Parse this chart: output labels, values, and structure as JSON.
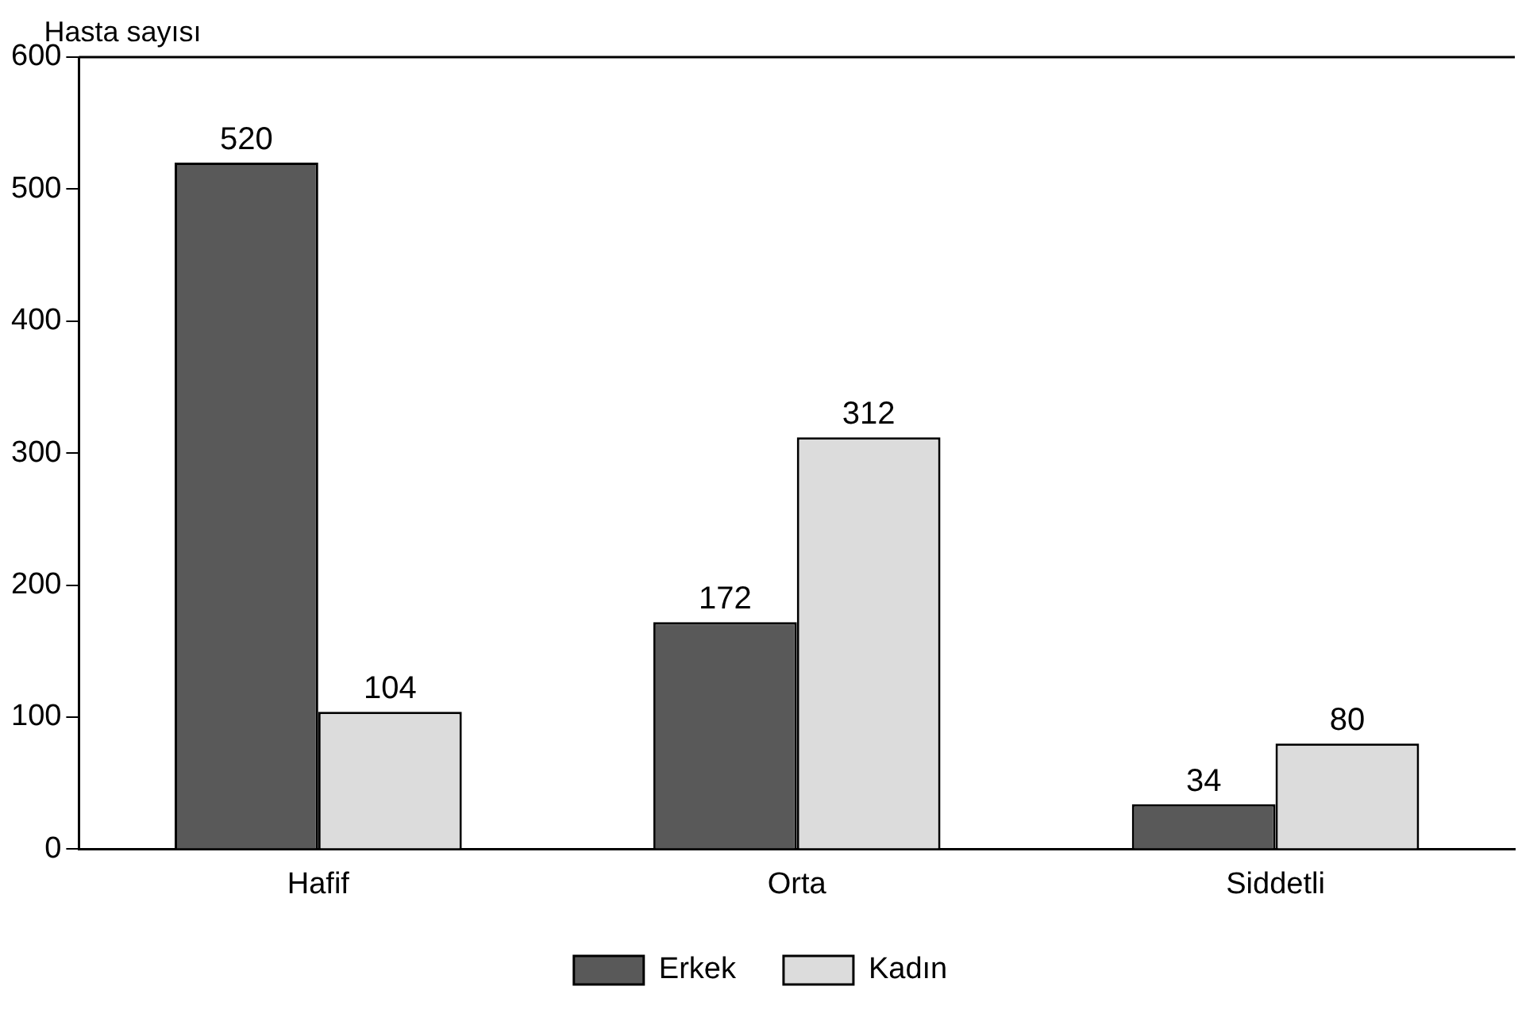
{
  "chart_data": {
    "type": "bar",
    "ylabel": "Hasta sayısı",
    "categories": [
      "Hafif",
      "Orta",
      "Siddetli"
    ],
    "series": [
      {
        "name": "Erkek",
        "color": "#595959",
        "values": [
          520,
          172,
          34
        ]
      },
      {
        "name": "Kadın",
        "color": "#dcdcdc",
        "values": [
          104,
          312,
          80
        ]
      }
    ],
    "ylim": [
      0,
      600
    ],
    "yticks": [
      0,
      100,
      200,
      300,
      400,
      500,
      600
    ],
    "grid": false,
    "legend": "bottom",
    "data_labels": true
  }
}
